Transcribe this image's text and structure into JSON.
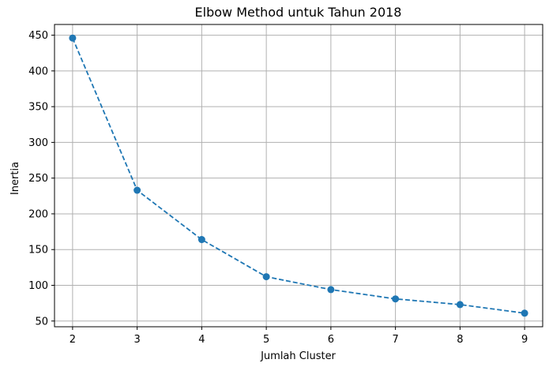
{
  "chart_data": {
    "type": "line",
    "title": "Elbow Method untuk Tahun 2018",
    "xlabel": "Jumlah Cluster",
    "ylabel": "Inertia",
    "x": [
      2,
      3,
      4,
      5,
      6,
      7,
      8,
      9
    ],
    "series": [
      {
        "values": [
          446,
          233,
          164,
          112,
          94,
          81,
          73,
          61
        ],
        "color": "#1f77b4",
        "line_style": "dashed",
        "marker": "circle"
      }
    ],
    "xticks": [
      2,
      3,
      4,
      5,
      6,
      7,
      8,
      9
    ],
    "yticks": [
      50,
      100,
      150,
      200,
      250,
      300,
      350,
      400,
      450
    ],
    "xlim": [
      1.72,
      9.28
    ],
    "ylim": [
      42,
      465
    ],
    "grid": true
  }
}
